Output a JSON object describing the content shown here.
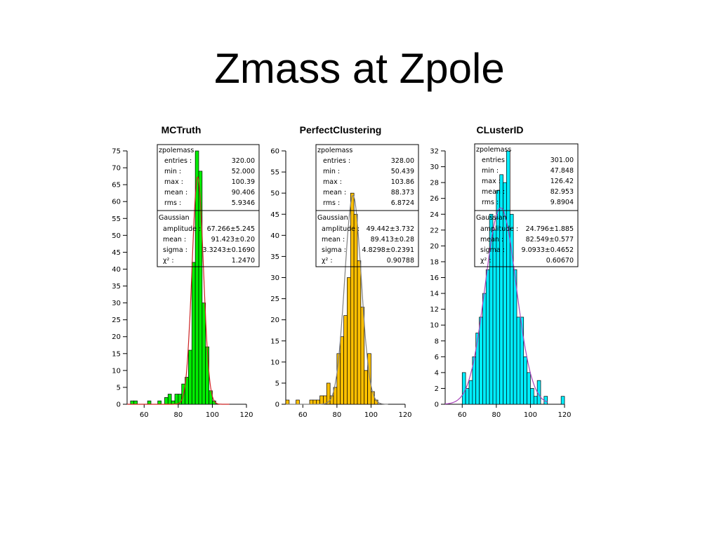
{
  "slide": {
    "title": "Zmass at Zpole"
  },
  "chart_data": [
    {
      "type": "bar",
      "title": "MCTruth",
      "color": "#00ee00",
      "fit_color": "#cc2222",
      "xlim": [
        50,
        120
      ],
      "ylim": [
        0,
        75
      ],
      "xticks": [
        60,
        80,
        100,
        120
      ],
      "yticks": [
        0,
        5,
        10,
        15,
        20,
        25,
        30,
        35,
        40,
        45,
        50,
        55,
        60,
        65,
        70,
        75
      ],
      "bin_width": 2,
      "bins": [
        [
          52,
          1
        ],
        [
          54,
          1
        ],
        [
          58,
          0
        ],
        [
          62,
          1
        ],
        [
          64,
          0
        ],
        [
          66,
          0
        ],
        [
          68,
          1
        ],
        [
          70,
          0
        ],
        [
          72,
          2
        ],
        [
          74,
          3
        ],
        [
          76,
          1
        ],
        [
          78,
          3
        ],
        [
          80,
          3
        ],
        [
          82,
          6
        ],
        [
          84,
          8
        ],
        [
          86,
          16
        ],
        [
          88,
          42
        ],
        [
          90,
          75
        ],
        [
          92,
          69
        ],
        [
          94,
          30
        ],
        [
          96,
          17
        ],
        [
          98,
          4
        ],
        [
          100,
          1
        ]
      ],
      "fit": {
        "amplitude": 67.266,
        "mean": 91.423,
        "sigma": 3.3243
      },
      "stats": {
        "name": "zpolemass",
        "rows": [
          {
            "label": "entries :",
            "value": "320.00"
          },
          {
            "label": "min :",
            "value": "52.000"
          },
          {
            "label": "max :",
            "value": "100.39"
          },
          {
            "label": "mean :",
            "value": "90.406"
          },
          {
            "label": "rms :",
            "value": "5.9346"
          }
        ]
      },
      "fit_stats": {
        "name": "Gaussian",
        "rows": [
          {
            "label": "amplitude :",
            "value": "67.266±5.245"
          },
          {
            "label": "mean :",
            "value": "91.423±0.20"
          },
          {
            "label": "sigma :",
            "value": "3.3243±0.1690"
          },
          {
            "label": "χ² :",
            "value": "1.2470"
          }
        ]
      }
    },
    {
      "type": "bar",
      "title": "PerfectClustering",
      "color": "#ffc000",
      "fit_color": "#808080",
      "xlim": [
        50,
        120
      ],
      "ylim": [
        0,
        60
      ],
      "xticks": [
        60,
        80,
        100,
        120
      ],
      "yticks": [
        0,
        5,
        10,
        15,
        20,
        25,
        30,
        35,
        40,
        45,
        50,
        55,
        60
      ],
      "bin_width": 2,
      "bins": [
        [
          50,
          1
        ],
        [
          56,
          1
        ],
        [
          58,
          0
        ],
        [
          60,
          0
        ],
        [
          62,
          0
        ],
        [
          64,
          1
        ],
        [
          66,
          1
        ],
        [
          68,
          1
        ],
        [
          70,
          2
        ],
        [
          72,
          2
        ],
        [
          74,
          5
        ],
        [
          76,
          2
        ],
        [
          78,
          4
        ],
        [
          80,
          12
        ],
        [
          82,
          16
        ],
        [
          84,
          21
        ],
        [
          86,
          30
        ],
        [
          88,
          50
        ],
        [
          90,
          45
        ],
        [
          92,
          34
        ],
        [
          94,
          23
        ],
        [
          96,
          8
        ],
        [
          98,
          12
        ],
        [
          100,
          3
        ],
        [
          102,
          1
        ]
      ],
      "fit": {
        "amplitude": 49.442,
        "mean": 89.413,
        "sigma": 4.8298
      },
      "stats": {
        "name": "zpolemass",
        "rows": [
          {
            "label": "entries :",
            "value": "328.00"
          },
          {
            "label": "min :",
            "value": "50.439"
          },
          {
            "label": "max :",
            "value": "103.86"
          },
          {
            "label": "mean :",
            "value": "88.373"
          },
          {
            "label": "rms :",
            "value": "6.8724"
          }
        ]
      },
      "fit_stats": {
        "name": "Gaussian",
        "rows": [
          {
            "label": "amplitude :",
            "value": "49.442±3.732"
          },
          {
            "label": "mean :",
            "value": "89.413±0.28"
          },
          {
            "label": "sigma :",
            "value": "4.8298±0.2391"
          },
          {
            "label": "χ² :",
            "value": "0.90788"
          }
        ]
      }
    },
    {
      "type": "bar",
      "title": "CLusterID",
      "color": "#00eeff",
      "fit_color": "#aa44bb",
      "xlim": [
        50,
        120
      ],
      "ylim": [
        0,
        32
      ],
      "xticks": [
        60,
        80,
        100,
        120
      ],
      "yticks": [
        0,
        2,
        4,
        6,
        8,
        10,
        12,
        14,
        16,
        18,
        20,
        22,
        24,
        26,
        28,
        30,
        32
      ],
      "bin_width": 2,
      "bins": [
        [
          58,
          0
        ],
        [
          60,
          4
        ],
        [
          62,
          2
        ],
        [
          64,
          3
        ],
        [
          66,
          6
        ],
        [
          68,
          9
        ],
        [
          70,
          11
        ],
        [
          72,
          14
        ],
        [
          74,
          17
        ],
        [
          76,
          24
        ],
        [
          78,
          22
        ],
        [
          80,
          27
        ],
        [
          82,
          29
        ],
        [
          84,
          28
        ],
        [
          86,
          32
        ],
        [
          88,
          24
        ],
        [
          90,
          17
        ],
        [
          92,
          11
        ],
        [
          94,
          11
        ],
        [
          96,
          6
        ],
        [
          98,
          4
        ],
        [
          100,
          2
        ],
        [
          102,
          1
        ],
        [
          104,
          3
        ],
        [
          106,
          0
        ],
        [
          108,
          1
        ],
        [
          110,
          0
        ],
        [
          112,
          0
        ],
        [
          114,
          0
        ],
        [
          116,
          0
        ],
        [
          118,
          1
        ]
      ],
      "fit": {
        "amplitude": 24.796,
        "mean": 82.549,
        "sigma": 9.0933
      },
      "stats": {
        "name": "zpolemass",
        "rows": [
          {
            "label": "entries",
            "value": "301.00"
          },
          {
            "label": "min :",
            "value": "47.848"
          },
          {
            "label": "max :",
            "value": "126.42"
          },
          {
            "label": "mean :",
            "value": "82.953"
          },
          {
            "label": "rms :",
            "value": "9.8904"
          }
        ]
      },
      "fit_stats": {
        "name": "Gaussian",
        "rows": [
          {
            "label": "amplitude :",
            "value": "24.796±1.885"
          },
          {
            "label": "mean :",
            "value": "82.549±0.577"
          },
          {
            "label": "sigma :",
            "value": "9.0933±0.4652"
          },
          {
            "label": "χ² :",
            "value": "0.60670"
          }
        ]
      }
    }
  ]
}
